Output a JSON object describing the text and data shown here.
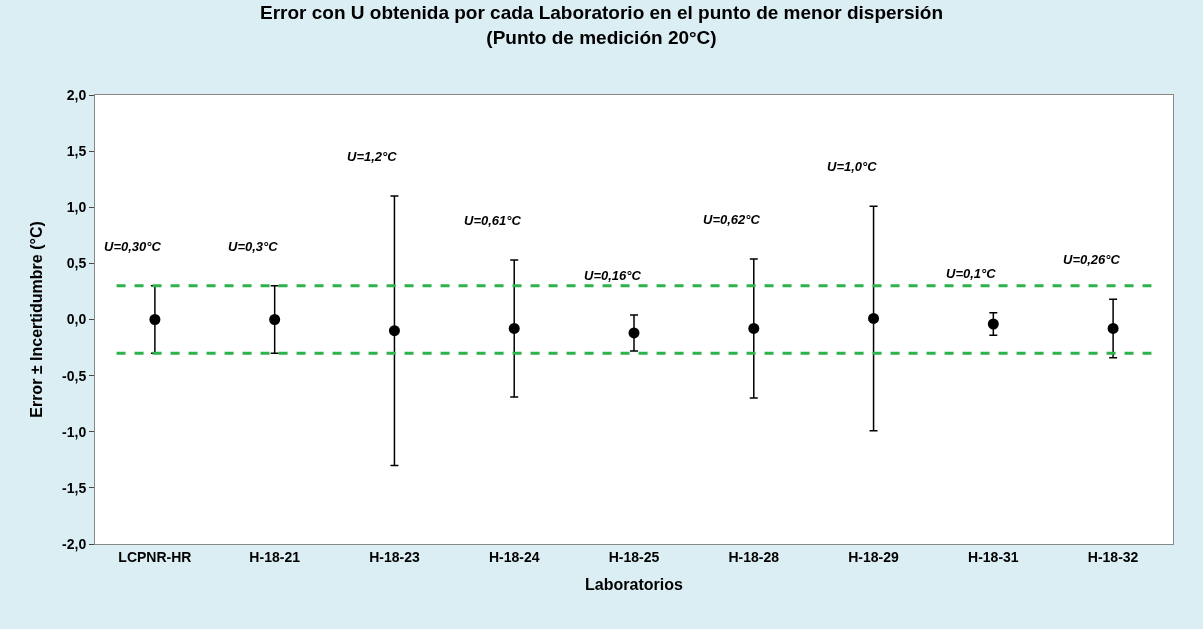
{
  "chart_data": {
    "type": "scatter",
    "title": "Error con U obtenida por cada Laboratorio en el punto de menor dispersión\n(Punto de medición 20°C)",
    "xlabel": "Laboratorios",
    "ylabel": "Error ± Incertidumbre (°C)",
    "categories": [
      "LCPNR-HR",
      "H-18-21",
      "H-18-23",
      "H-18-24",
      "H-18-25",
      "H-18-28",
      "H-18-29",
      "H-18-31",
      "H-18-32"
    ],
    "series": [
      {
        "color": "#000000",
        "values": [
          0.0,
          0.0,
          -0.1,
          -0.08,
          -0.12,
          -0.08,
          0.01,
          -0.04,
          -0.08
        ],
        "errors": [
          0.3,
          0.3,
          1.2,
          0.61,
          0.16,
          0.62,
          1.0,
          0.1,
          0.26
        ]
      }
    ],
    "ylim": [
      -2,
      2
    ],
    "yticks": [
      {
        "value": -2,
        "label": "-2,0"
      },
      {
        "value": -1.5,
        "label": "-1,5"
      },
      {
        "value": -1,
        "label": "-1,0"
      },
      {
        "value": -0.5,
        "label": "-0,5"
      },
      {
        "value": 0,
        "label": "0,0"
      },
      {
        "value": 0.5,
        "label": "0,5"
      },
      {
        "value": 1,
        "label": "1,0"
      },
      {
        "value": 1.5,
        "label": "1,5"
      },
      {
        "value": 2,
        "label": "2,0"
      }
    ],
    "ref_lines": [
      {
        "axis": "y",
        "value": 0.3,
        "color": "#2db34a",
        "line_style": "dashed"
      },
      {
        "axis": "y",
        "value": -0.3,
        "color": "#2db34a",
        "line_style": "dashed"
      }
    ],
    "annotations": [
      "U=0,30°C",
      "U=0,3°C",
      "U=1,2°C",
      "U=0,61°C",
      "U=0,16°C",
      "U=0,62°C",
      "U=1,0°C",
      "U=0,1°C",
      "U=0,26°C"
    ],
    "marker": "circle"
  }
}
